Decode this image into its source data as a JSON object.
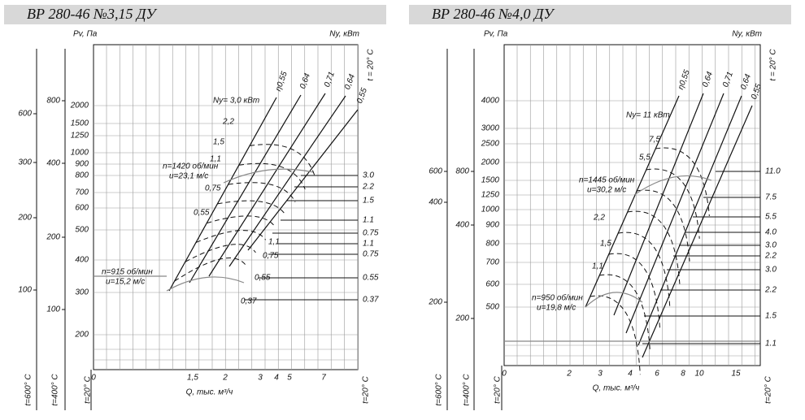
{
  "panels": [
    {
      "title": "ВР 280-46 №3,15 ДУ",
      "pv_label": "Pv, Па",
      "ny_label": "Ny, кВт",
      "temp_top": "t = 20° С",
      "x_label": "Q, тыс. м³/ч",
      "outer_scale": [
        "600",
        "300",
        "200",
        "100"
      ],
      "inner_scale": [
        "800",
        "400",
        "200",
        "100"
      ],
      "y_ticks": [
        "2000",
        "1500",
        "1250",
        "1000",
        "900",
        "800",
        "700",
        "600",
        "500",
        "400",
        "300",
        "200"
      ],
      "x_ticks": [
        "0",
        "1,5",
        "2",
        "3",
        "4",
        "5",
        "7"
      ],
      "right_labels": [
        "3.0",
        "2.2",
        "1.5",
        "1.1",
        "0.75",
        "1.1",
        "0.75",
        "0.55",
        "0.37"
      ],
      "bottom_temps": [
        "t=600° С",
        "t=400° С",
        "t=20° С",
        "t=20° С"
      ],
      "efficiency": [
        "η0,55",
        "0,64",
        "0,71",
        "0,64",
        "0,55"
      ],
      "annotations": [
        "Ny= 3,0 кВт",
        "2,2",
        "1,5",
        "1,1",
        "0,75",
        "0,55",
        "1,1",
        "0,75",
        "0,55",
        "0,37",
        "n=1420 об/мин",
        "u=23,1 м/с",
        "n=915 об/мин",
        "u=15,2 м/с"
      ]
    },
    {
      "title": "ВР 280-46 №4,0 ДУ",
      "pv_label": "Pv, Па",
      "ny_label": "Ny, кВт",
      "temp_top": "t = 20° С",
      "x_label": "Q, тыс. м³/ч",
      "outer_scale": [
        "600",
        "400",
        "200"
      ],
      "inner_scale": [
        "800",
        "400",
        "200"
      ],
      "y_ticks": [
        "4000",
        "3000",
        "2500",
        "2000",
        "1500",
        "1250",
        "1000",
        "900",
        "800",
        "700",
        "600",
        "500"
      ],
      "x_ticks": [
        "0",
        "2",
        "3",
        "4",
        "6",
        "8",
        "10",
        "15"
      ],
      "right_labels": [
        "11.0",
        "7.5",
        "5.5",
        "4.0",
        "3.0",
        "2.2",
        "3.0",
        "2.2",
        "1.5",
        "1.1"
      ],
      "bottom_temps": [
        "t=600° С",
        "t=400° С",
        "t=20° С",
        "t=20° С"
      ],
      "efficiency": [
        "η0,55",
        "0,64",
        "0,71",
        "0,64",
        "0,55"
      ],
      "annotations": [
        "Ny= 11 кВт",
        "7,5",
        "5,5",
        "2,2",
        "1,5",
        "1,1",
        "n=1445 об/мин",
        "u=30,2 м/с",
        "n=950 об/мин",
        "u=19,8 м/с"
      ]
    }
  ]
}
